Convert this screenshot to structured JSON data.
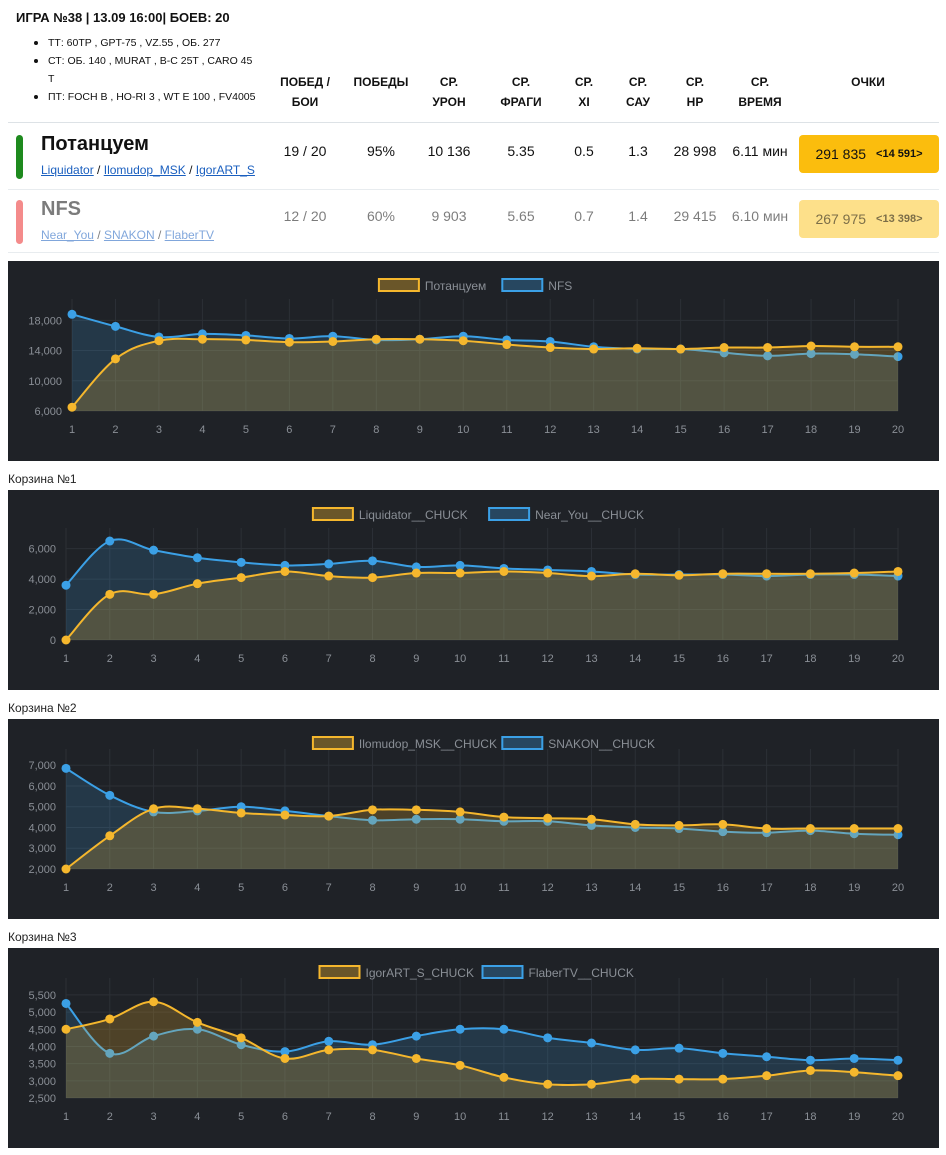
{
  "header": {
    "title": "ИГРА №38 | 13.09 16:00| БОЕВ: 20",
    "tank_lines": [
      "ТТ: 60TP , GPT-75 , VZ.55 , ОБ. 277",
      "СТ: ОБ. 140 , MURAT , B-C 25T , CARO 45 T",
      "ПТ: FOCH B , HO-RI 3 , WT E 100 , FV4005"
    ]
  },
  "columns": {
    "wins_battles": [
      "ПОБЕД /",
      "БОИ"
    ],
    "wins": [
      "",
      "ПОБЕДЫ"
    ],
    "dmg": [
      "СР.",
      "УРОН"
    ],
    "frags": [
      "СР.",
      "ФРАГИ"
    ],
    "xi": [
      "СР.",
      "XI"
    ],
    "sau": [
      "СР.",
      "САУ"
    ],
    "hp": [
      "СР.",
      "HP"
    ],
    "time": [
      "СР.",
      "ВРЕМЯ"
    ],
    "points": [
      "",
      "ОЧКИ"
    ]
  },
  "teams": [
    {
      "name": "Потанцуем",
      "color": "#1e8a1e",
      "players": [
        "Liquidator",
        "Ilomudop_MSK",
        "IgorART_S"
      ],
      "wins_battles": "19 / 20",
      "win_pct": "95%",
      "avg_dmg": "10 136",
      "avg_frags": "5.35",
      "avg_xi": "0.5",
      "avg_sau": "1.3",
      "avg_hp": "28 998",
      "avg_time": "6.11 мин",
      "points": "291 835",
      "points_diff": "<14 591>",
      "points_bg": "#fbbd0d"
    },
    {
      "name": "NFS",
      "color": "#f48b8b",
      "players": [
        "Near_You",
        "SNAKON",
        "FlaberTV"
      ],
      "wins_battles": "12 / 20",
      "win_pct": "60%",
      "avg_dmg": "9 903",
      "avg_frags": "5.65",
      "avg_xi": "0.7",
      "avg_sau": "1.4",
      "avg_hp": "29 415",
      "avg_time": "6.10 мин",
      "points": "267 975",
      "points_diff": "<13 398>",
      "points_bg": "#fde08a"
    }
  ],
  "captions": [
    "Корзина №1",
    "Корзина №2",
    "Корзина №3"
  ],
  "colors": {
    "series_a": "#f5b72d",
    "series_b": "#3ba0e6",
    "panel_bg": "#1f2227"
  },
  "chart_data": [
    {
      "type": "line",
      "x": [
        1,
        2,
        3,
        4,
        5,
        6,
        7,
        8,
        9,
        10,
        11,
        12,
        13,
        14,
        15,
        16,
        17,
        18,
        19,
        20
      ],
      "ylim": [
        6000,
        19500
      ],
      "yticks": [
        "18,000",
        "14,000",
        "10,000",
        "6,000"
      ],
      "ytick_values": [
        18000,
        14000,
        10000,
        6000
      ],
      "series": [
        {
          "name": "Потанцуем",
          "values": [
            6500,
            12900,
            15300,
            15500,
            15400,
            15100,
            15200,
            15500,
            15500,
            15300,
            14800,
            14400,
            14200,
            14300,
            14200,
            14400,
            14400,
            14600,
            14500,
            14500
          ]
        },
        {
          "name": "NFS",
          "values": [
            18800,
            17200,
            15800,
            16200,
            16000,
            15600,
            15900,
            15400,
            15500,
            15900,
            15400,
            15200,
            14500,
            14200,
            14200,
            13700,
            13300,
            13600,
            13500,
            13200
          ]
        }
      ]
    },
    {
      "type": "line",
      "x": [
        1,
        2,
        3,
        4,
        5,
        6,
        7,
        8,
        9,
        10,
        11,
        12,
        13,
        14,
        15,
        16,
        17,
        18,
        19,
        20
      ],
      "ylim": [
        0,
        6700
      ],
      "yticks": [
        "6,000",
        "4,000",
        "2,000",
        "0"
      ],
      "ytick_values": [
        6000,
        4000,
        2000,
        0
      ],
      "series": [
        {
          "name": "Liquidator__CHUCK",
          "values": [
            0,
            3000,
            3000,
            3700,
            4100,
            4500,
            4200,
            4100,
            4400,
            4400,
            4500,
            4400,
            4200,
            4350,
            4250,
            4350,
            4350,
            4350,
            4400,
            4500
          ]
        },
        {
          "name": "Near_You__CHUCK",
          "values": [
            3600,
            6500,
            5900,
            5400,
            5100,
            4900,
            5000,
            5200,
            4800,
            4900,
            4700,
            4600,
            4500,
            4300,
            4300,
            4300,
            4200,
            4300,
            4300,
            4200
          ]
        }
      ]
    },
    {
      "type": "line",
      "x": [
        1,
        2,
        3,
        4,
        5,
        6,
        7,
        8,
        9,
        10,
        11,
        12,
        13,
        14,
        15,
        16,
        17,
        18,
        19,
        20
      ],
      "ylim": [
        2000,
        7300
      ],
      "yticks": [
        "7,000",
        "6,000",
        "5,000",
        "4,000",
        "3,000",
        "2,000"
      ],
      "ytick_values": [
        7000,
        6000,
        5000,
        4000,
        3000,
        2000
      ],
      "series": [
        {
          "name": "Ilomudop_MSK__CHUCK",
          "values": [
            2000,
            3600,
            4900,
            4900,
            4700,
            4600,
            4550,
            4850,
            4850,
            4750,
            4500,
            4450,
            4400,
            4150,
            4100,
            4150,
            3950,
            3950,
            3950,
            3950
          ]
        },
        {
          "name": "SNAKON__CHUCK",
          "values": [
            6850,
            5550,
            4750,
            4800,
            5000,
            4800,
            4550,
            4350,
            4400,
            4400,
            4300,
            4300,
            4100,
            4000,
            3950,
            3800,
            3750,
            3850,
            3700,
            3650
          ]
        }
      ]
    },
    {
      "type": "line",
      "x": [
        1,
        2,
        3,
        4,
        5,
        6,
        7,
        8,
        9,
        10,
        11,
        12,
        13,
        14,
        15,
        16,
        17,
        18,
        19,
        20
      ],
      "ylim": [
        2500,
        5700
      ],
      "yticks": [
        "5,500",
        "5,000",
        "4,500",
        "4,000",
        "3,500",
        "3,000",
        "2,500"
      ],
      "ytick_values": [
        5500,
        5000,
        4500,
        4000,
        3500,
        3000,
        2500
      ],
      "series": [
        {
          "name": "IgorART_S_CHUCK",
          "values": [
            4500,
            4800,
            5300,
            4700,
            4250,
            3650,
            3900,
            3900,
            3650,
            3450,
            3100,
            2900,
            2900,
            3050,
            3050,
            3050,
            3150,
            3300,
            3250,
            3150
          ]
        },
        {
          "name": "FlaberTV__CHUCK",
          "values": [
            5250,
            3800,
            4300,
            4500,
            4050,
            3850,
            4150,
            4050,
            4300,
            4500,
            4500,
            4250,
            4100,
            3900,
            3950,
            3800,
            3700,
            3600,
            3650,
            3600
          ]
        }
      ]
    }
  ]
}
